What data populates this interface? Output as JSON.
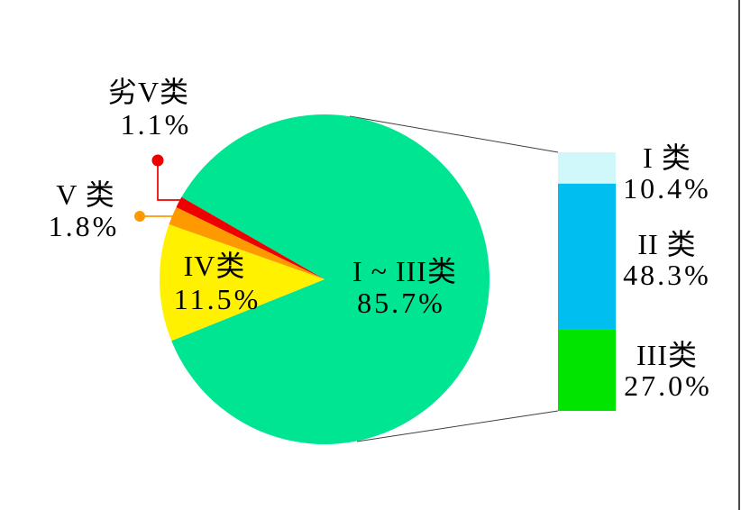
{
  "chart_data": {
    "type": "pie",
    "subtype": "bar-of-pie",
    "title": "",
    "pie": {
      "start_angle_deg": 201.9,
      "direction": "ccw",
      "slices": [
        {
          "label": "I ~ III类",
          "value_pct": 85.7,
          "color": "#00E592"
        },
        {
          "label": "劣V类",
          "value_pct": 1.1,
          "color": "#EE0000"
        },
        {
          "label": "V 类",
          "value_pct": 1.8,
          "color": "#FF9900"
        },
        {
          "label": "IV类",
          "value_pct": 11.5,
          "color": "#FFF100"
        }
      ]
    },
    "bar_breakdown": {
      "of_slice": "I ~ III类",
      "segments": [
        {
          "label": "I 类",
          "value_pct": 10.4,
          "color": "#D0F7FA"
        },
        {
          "label": "II 类",
          "value_pct": 48.3,
          "color": "#00BFF0"
        },
        {
          "label": "III类",
          "value_pct": 27.0,
          "color": "#00E400"
        }
      ]
    },
    "legend_position": "labels-on-chart",
    "grid": false
  },
  "labels": {
    "pie_main": {
      "name": "I ~ III类",
      "pct": "85.7%"
    },
    "pie_iv": {
      "name": "IV类",
      "pct": "11.5%"
    },
    "pie_v": {
      "name": "V 类",
      "pct": "1.8%"
    },
    "pie_bad_v": {
      "name": "劣V类",
      "pct": "1.1%"
    },
    "bar_i": {
      "name": "I 类",
      "pct": "10.4%"
    },
    "bar_ii": {
      "name": "II 类",
      "pct": "48.3%"
    },
    "bar_iii": {
      "name": "III类",
      "pct": "27.0%"
    }
  },
  "colors": {
    "leader_bad_v": "#EE0000",
    "leader_v": "#FF9900",
    "connector": "#404040",
    "background": "#FFFFFF"
  }
}
